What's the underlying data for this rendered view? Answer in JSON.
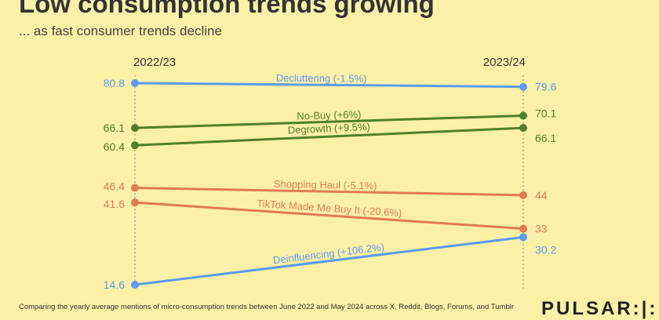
{
  "chart_data": {
    "type": "line",
    "title": "Low consumption trends growing",
    "subtitle": "... as fast consumer trends decline",
    "x": [
      "2022/23",
      "2023/24"
    ],
    "series": [
      {
        "name": "Decluttering (-1.5%)",
        "values": [
          80.8,
          79.6
        ],
        "color": "#5b9bf0"
      },
      {
        "name": "No-Buy (+6%)",
        "values": [
          66.1,
          70.1
        ],
        "color": "#4f7f2a"
      },
      {
        "name": "Degrowth (+9.5%)",
        "values": [
          60.4,
          66.1
        ],
        "color": "#4f7f2a"
      },
      {
        "name": "Shopping Haul (-5.1%)",
        "values": [
          46.4,
          44
        ],
        "color": "#e07b54"
      },
      {
        "name": "TikTok Made Me Buy It (-20.6%)",
        "values": [
          41.6,
          33
        ],
        "color": "#e07b54"
      },
      {
        "name": "Deinfluencing (+106.2%)",
        "values": [
          14.6,
          30.2
        ],
        "color": "#5b9bf0"
      }
    ],
    "ylim": [
      14.6,
      80.8
    ],
    "grid": false,
    "legend": "none"
  },
  "footnote": "Comparing the yearly average mentions of micro-consumption trends between June 2022 and May 2024 across X, Reddit, Blogs, Forums, and Tumblr",
  "logo": "PULSAR"
}
